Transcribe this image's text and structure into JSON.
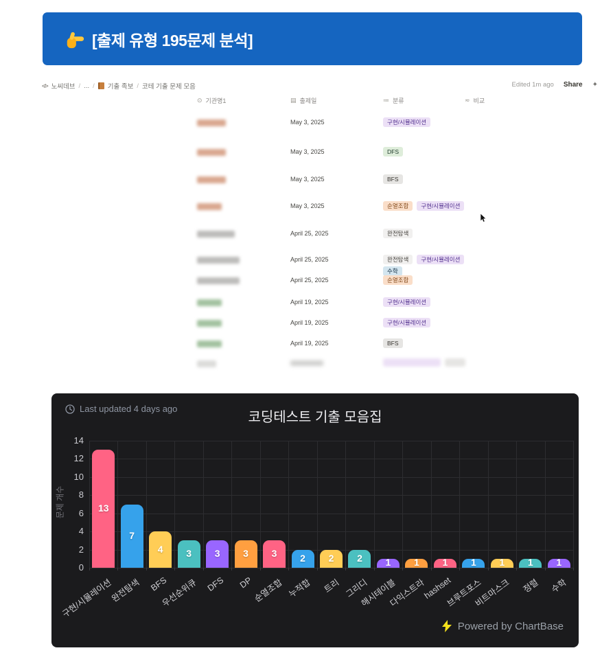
{
  "banner": {
    "icon": "pointing-right-hand",
    "title": "[출제 유형 195문제 분석]",
    "background": "#1565c0"
  },
  "notion": {
    "breadcrumb": [
      {
        "icon": "code-icon",
        "label": "노씨데브"
      },
      {
        "label": "..."
      },
      {
        "icon": "orange-book-icon",
        "label": "기출 족보"
      },
      {
        "label": "코테 기출 문제 모음"
      }
    ],
    "edited": "Edited 1m ago",
    "share": "Share",
    "table": {
      "columns": [
        {
          "icon": "⊙",
          "label": "기관명1"
        },
        {
          "icon": "▤",
          "label": "출제일"
        },
        {
          "icon": "≔",
          "label": "분류"
        },
        {
          "icon": "≂",
          "label": "비교"
        }
      ],
      "rows": [
        {
          "name_redacted": "tan",
          "name_w": 42,
          "date": "May 3, 2025",
          "tags": [
            {
              "label": "구현/시뮬레이션",
              "color": "purple"
            }
          ]
        },
        {
          "name_redacted": "tan",
          "name_w": 42,
          "date": "May 3, 2025",
          "tags": [
            {
              "label": "DFS",
              "color": "green"
            }
          ]
        },
        {
          "name_redacted": "tan",
          "name_w": 42,
          "date": "May 3, 2025",
          "tags": [
            {
              "label": "BFS",
              "color": "gray"
            }
          ]
        },
        {
          "name_redacted": "tan",
          "name_w": 36,
          "date": "May 3, 2025",
          "tags": [
            {
              "label": "순열조합",
              "color": "orange"
            },
            {
              "label": "구현/시뮬레이션",
              "color": "purple"
            }
          ]
        },
        {
          "name_redacted": "gray",
          "name_w": 55,
          "date": "April 25, 2025",
          "tags": [
            {
              "label": "완전탐색",
              "color": "default"
            }
          ]
        },
        {
          "name_redacted": "gray",
          "name_w": 62,
          "date": "April 25, 2025",
          "tags": [
            {
              "label": "완전탐색",
              "color": "default"
            },
            {
              "label": "구현/시뮬레이션",
              "color": "purple"
            },
            {
              "label": "수학",
              "color": "blue",
              "wrap": true
            }
          ]
        },
        {
          "name_redacted": "gray",
          "name_w": 62,
          "date": "April 25, 2025",
          "tags": [
            {
              "label": "순열조합",
              "color": "orange"
            }
          ]
        },
        {
          "name_redacted": "green",
          "name_w": 36,
          "date": "April 19, 2025",
          "tags": [
            {
              "label": "구현/시뮬레이션",
              "color": "purple"
            }
          ]
        },
        {
          "name_redacted": "green",
          "name_w": 36,
          "date": "April 19, 2025",
          "tags": [
            {
              "label": "구현/시뮬레이션",
              "color": "purple"
            }
          ]
        },
        {
          "name_redacted": "green",
          "name_w": 36,
          "date": "April 19, 2025",
          "tags": [
            {
              "label": "BFS",
              "color": "gray"
            }
          ]
        },
        {
          "name_redacted": "light",
          "name_w": 28,
          "date_redacted": true,
          "tags_redacted": [
            {
              "color": "purple",
              "w": 84
            },
            {
              "color": "gray",
              "w": 30
            }
          ]
        }
      ]
    }
  },
  "chart": {
    "updated": "Last updated 4 days ago",
    "title": "코딩테스트 기출 모음집",
    "footer": "Powered by ChartBase",
    "footer_icon": "lightning-bolt-icon",
    "background": "#1b1b1d",
    "palette": [
      "#FF6384",
      "#36A2EB",
      "#FFCD56",
      "#4BC0C0",
      "#9966FF",
      "#FF9F40"
    ]
  },
  "chart_data": {
    "type": "bar",
    "title": "코딩테스트 기출 모음집",
    "xlabel": "",
    "ylabel": "문제 개수",
    "ylim": [
      0,
      14
    ],
    "ytick_step": 2,
    "grid": true,
    "legend": "none",
    "categories": [
      "구현/시뮬레이션",
      "완전탐색",
      "BFS",
      "우선순위큐",
      "DFS",
      "DP",
      "순열조합",
      "누적합",
      "트리",
      "그리디",
      "해시테이블",
      "다익스트라",
      "hashset",
      "브루트포스",
      "비트마스크",
      "정렬",
      "수학"
    ],
    "values": [
      13,
      7,
      4,
      3,
      3,
      3,
      3,
      2,
      2,
      2,
      1,
      1,
      1,
      1,
      1,
      1,
      1
    ],
    "bar_colors_cycle": [
      "#FF6384",
      "#36A2EB",
      "#FFCD56",
      "#4BC0C0",
      "#9966FF",
      "#FF9F40"
    ]
  }
}
